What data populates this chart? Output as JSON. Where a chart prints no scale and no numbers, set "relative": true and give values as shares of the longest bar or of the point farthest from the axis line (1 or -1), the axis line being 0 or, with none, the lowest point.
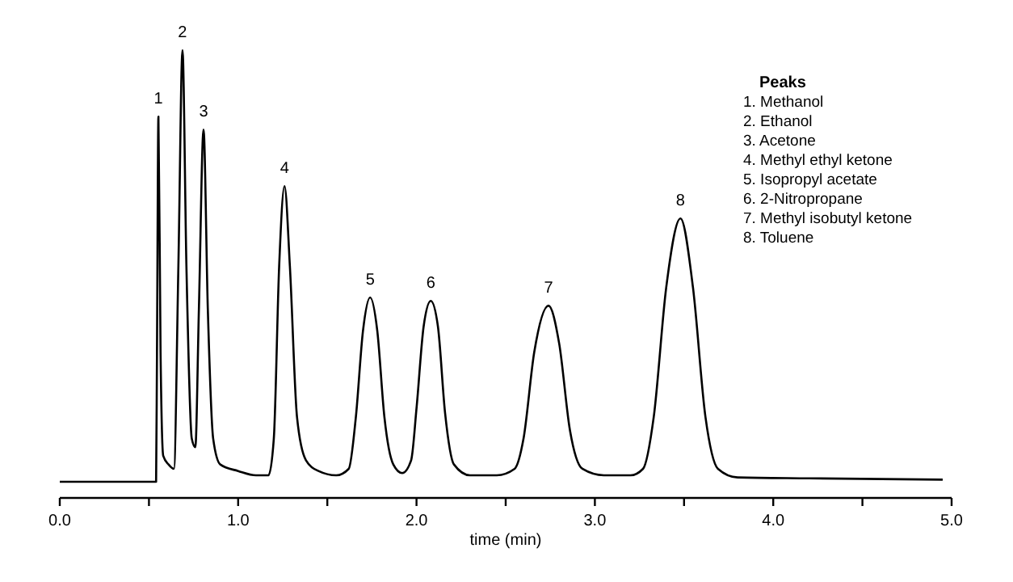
{
  "chart_data": {
    "type": "line",
    "relative": true,
    "xlabel": "time (min)",
    "xlim": [
      0,
      5
    ],
    "xticks": [
      {
        "value": 0,
        "label": "0.0"
      },
      {
        "value": 0.5,
        "label": null
      },
      {
        "value": 1,
        "label": "1.0"
      },
      {
        "value": 1.5,
        "label": null
      },
      {
        "value": 2,
        "label": "2.0"
      },
      {
        "value": 2.5,
        "label": null
      },
      {
        "value": 3,
        "label": "3.0"
      },
      {
        "value": 3.5,
        "label": null
      },
      {
        "value": 4,
        "label": "4.0"
      },
      {
        "value": 4.5,
        "label": null
      },
      {
        "value": 5,
        "label": "5.0"
      }
    ],
    "tick_labels": "x",
    "marker": "none",
    "line_style": "solid",
    "series": [
      {
        "color": "#000000",
        "x": [
          0,
          0.54,
          0.545,
          0.553,
          0.565,
          0.58,
          0.61,
          0.64,
          0.665,
          0.688,
          0.71,
          0.74,
          0.76,
          0.78,
          0.806,
          0.83,
          0.86,
          0.9,
          1.0,
          1.1,
          1.17,
          1.2,
          1.23,
          1.26,
          1.29,
          1.33,
          1.38,
          1.45,
          1.55,
          1.62,
          1.66,
          1.7,
          1.74,
          1.78,
          1.82,
          1.87,
          1.92,
          1.97,
          2.0,
          2.04,
          2.08,
          2.12,
          2.16,
          2.21,
          2.3,
          2.45,
          2.55,
          2.6,
          2.66,
          2.74,
          2.8,
          2.86,
          2.93,
          3.05,
          3.2,
          3.27,
          3.33,
          3.4,
          3.48,
          3.55,
          3.62,
          3.69,
          3.8,
          4.2,
          4.95
        ],
        "values": [
          0,
          0,
          0.3,
          0.846,
          0.3,
          0.06,
          0.04,
          0.03,
          0.5,
          1.0,
          0.5,
          0.1,
          0.08,
          0.4,
          0.816,
          0.4,
          0.1,
          0.04,
          0.025,
          0.015,
          0.015,
          0.1,
          0.5,
          0.685,
          0.5,
          0.15,
          0.05,
          0.025,
          0.015,
          0.03,
          0.15,
          0.35,
          0.427,
          0.35,
          0.15,
          0.04,
          0.02,
          0.05,
          0.17,
          0.36,
          0.419,
          0.36,
          0.16,
          0.04,
          0.015,
          0.015,
          0.03,
          0.1,
          0.3,
          0.408,
          0.32,
          0.12,
          0.03,
          0.015,
          0.015,
          0.03,
          0.15,
          0.45,
          0.61,
          0.45,
          0.15,
          0.03,
          0.01,
          0.008,
          0.005
        ]
      }
    ],
    "annotations": [
      {
        "text": "1",
        "x": 0.553,
        "y": 0.846
      },
      {
        "text": "2",
        "x": 0.688,
        "y": 1.0
      },
      {
        "text": "3",
        "x": 0.806,
        "y": 0.816
      },
      {
        "text": "4",
        "x": 1.26,
        "y": 0.685
      },
      {
        "text": "5",
        "x": 1.74,
        "y": 0.427
      },
      {
        "text": "6",
        "x": 2.08,
        "y": 0.419
      },
      {
        "text": "7",
        "x": 2.74,
        "y": 0.408
      },
      {
        "text": "8",
        "x": 3.48,
        "y": 0.61
      },
      "Peaks",
      "1. Methanol",
      "2. Ethanol",
      "3. Acetone",
      "4. Methyl ethyl ketone",
      "5. Isopropyl acetate",
      "6. 2-Nitropropane",
      "7. Methyl isobutyl ketone",
      "8. Toluene"
    ]
  }
}
